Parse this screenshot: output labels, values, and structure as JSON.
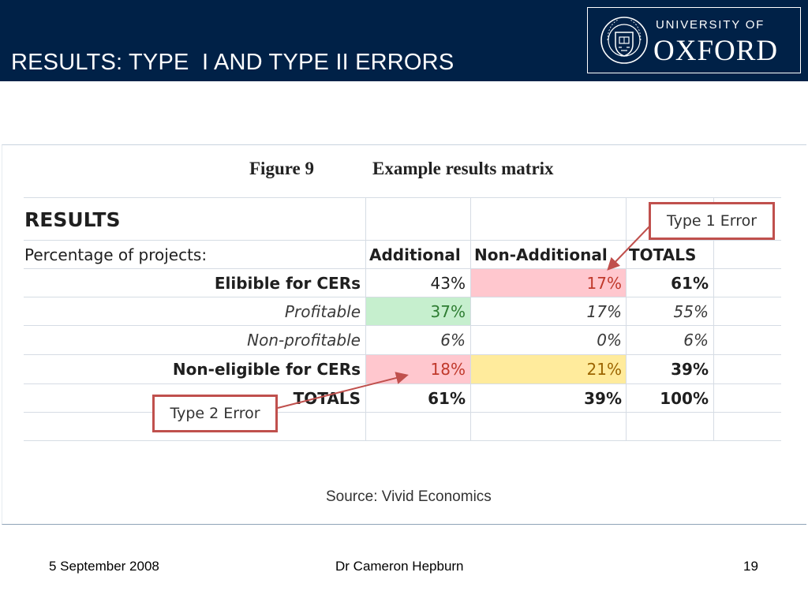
{
  "slide": {
    "title": "RESULTS: TYPE  I AND TYPE II ERRORS",
    "logo": {
      "line1": "UNIVERSITY OF",
      "line2": "OXFORD"
    }
  },
  "figure": {
    "label": "Figure 9",
    "caption": "Example results matrix",
    "source": "Source: Vivid Economics"
  },
  "table": {
    "title": "RESULTS",
    "subtitle": "Percentage of projects:",
    "headers": [
      "Additional",
      "Non-Additional",
      "TOTALS"
    ],
    "rows": [
      {
        "label": "Elibible for CERs",
        "values": [
          "43%",
          "17%",
          "61%"
        ]
      },
      {
        "label": "Profitable",
        "values": [
          "37%",
          "17%",
          "55%"
        ]
      },
      {
        "label": "Non-profitable",
        "values": [
          "6%",
          "0%",
          "6%"
        ]
      },
      {
        "label": "Non-eligible for CERs",
        "values": [
          "18%",
          "21%",
          "39%"
        ]
      },
      {
        "label": "TOTALS",
        "values": [
          "61%",
          "39%",
          "100%"
        ]
      }
    ]
  },
  "callouts": {
    "type1": "Type 1 Error",
    "type2": "Type 2 Error"
  },
  "colors": {
    "header_bg": "#002147",
    "error_red_fill": "#ffc7ce",
    "error_red_text": "#c0392b",
    "green_fill": "#c6efce",
    "green_text": "#2e7d32",
    "yellow_fill": "#ffeb9c",
    "yellow_text": "#9c6500",
    "callout_border": "#c0504d"
  },
  "footer": {
    "date": "5 September 2008",
    "author": "Dr Cameron Hepburn",
    "page": "19"
  }
}
